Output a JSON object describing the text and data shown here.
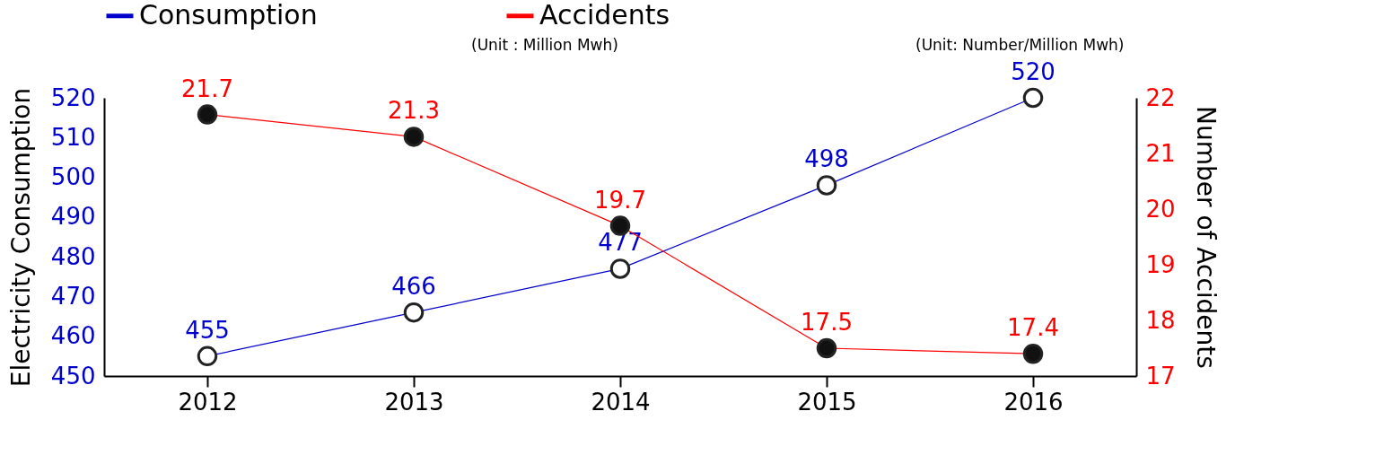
{
  "chart_data": {
    "type": "line",
    "categories": [
      "2012",
      "2013",
      "2014",
      "2015",
      "2016"
    ],
    "series": [
      {
        "name": "Consumption",
        "color": "#0000cc",
        "values": [
          455,
          466,
          477,
          498,
          520
        ]
      },
      {
        "name": "Accidents",
        "color": "#ff0000",
        "values": [
          21.7,
          21.3,
          19.7,
          17.5,
          17.4
        ],
        "axis": "y2"
      }
    ],
    "ylabel": "Electricity Consumption",
    "y2label": "Number of Accidents",
    "ylim": [
      450,
      520
    ],
    "yticks": [
      450,
      460,
      470,
      480,
      490,
      500,
      510,
      520
    ],
    "y2lim": [
      17,
      22
    ],
    "y2ticks": [
      17,
      18,
      19,
      20,
      21,
      22
    ],
    "annotations": [
      "(Unit : Million Mwh)",
      "(Unit: Number/Million Mwh)"
    ],
    "data_labels": true,
    "legend": "top",
    "marker": "circle",
    "grid": false
  }
}
